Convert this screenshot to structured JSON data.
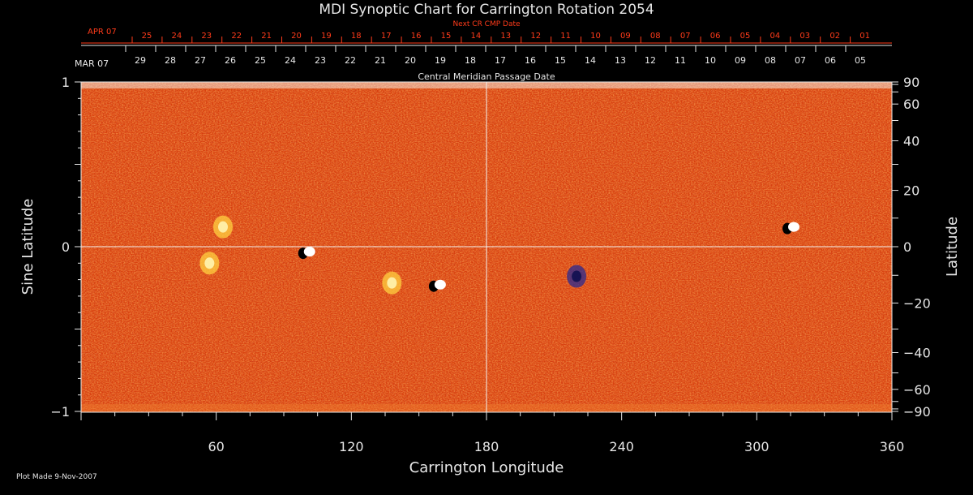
{
  "chart_data": {
    "type": "heatmap",
    "title": "MDI Synoptic Chart for Carrington Rotation 2054",
    "xlabel": "Carrington Longitude",
    "ylabel_left": "Sine Latitude",
    "ylabel_right": "Latitude",
    "xlim": [
      0,
      360
    ],
    "ylim": [
      -1,
      1
    ],
    "x_ticks": [
      "60",
      "120",
      "180",
      "240",
      "300",
      "360"
    ],
    "y_ticks_left": [
      "1",
      "0",
      "−1"
    ],
    "y_ticks_right": [
      "90",
      "60",
      "40",
      "20",
      "0",
      "−20",
      "−40",
      "−60",
      "−90"
    ],
    "grid": "center lines at 180 and equator",
    "cmp_axis": {
      "label": "Central Meridian Passage Date",
      "month_label": "MAR 07",
      "dates": [
        "29",
        "28",
        "27",
        "26",
        "25",
        "24",
        "23",
        "22",
        "21",
        "20",
        "19",
        "18",
        "17",
        "16",
        "15",
        "14",
        "13",
        "12",
        "11",
        "10",
        "09",
        "08",
        "07",
        "06",
        "05"
      ]
    },
    "next_cr_axis": {
      "label": "Next CR CMP Date",
      "month_label": "APR 07",
      "dates": [
        "25",
        "24",
        "23",
        "22",
        "21",
        "20",
        "19",
        "18",
        "17",
        "16",
        "15",
        "14",
        "13",
        "12",
        "11",
        "10",
        "09",
        "08",
        "07",
        "06",
        "05",
        "04",
        "03",
        "02",
        "01"
      ]
    },
    "active_regions": [
      {
        "lon": 57,
        "sinlat": -0.1,
        "polarity": "positive"
      },
      {
        "lon": 63,
        "sinlat": 0.12,
        "polarity": "positive"
      },
      {
        "lon": 100,
        "sinlat": -0.04,
        "polarity": "mixed"
      },
      {
        "lon": 158,
        "sinlat": -0.24,
        "polarity": "mixed"
      },
      {
        "lon": 315,
        "sinlat": 0.11,
        "polarity": "mixed"
      },
      {
        "lon": 138,
        "sinlat": -0.22,
        "polarity": "positive"
      },
      {
        "lon": 220,
        "sinlat": -0.18,
        "polarity": "negative"
      }
    ],
    "colors": {
      "background": "#d8400f",
      "positive": "#ffe070",
      "negative": "#1a1a6e",
      "axes": "#e6e6e6",
      "secondary": "#ff3b1a"
    }
  },
  "footer": {
    "plot_made": "Plot Made  9-Nov-2007"
  }
}
